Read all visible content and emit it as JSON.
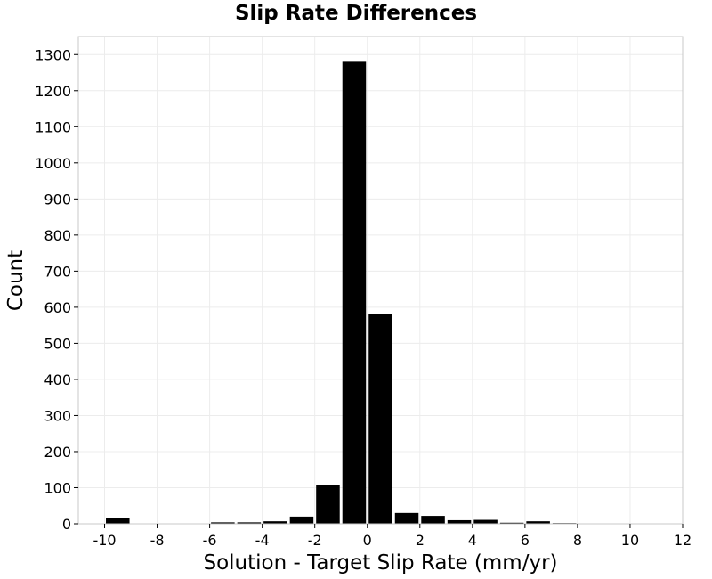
{
  "chart_data": {
    "type": "bar",
    "title": "Slip Rate Differences",
    "xlabel": "Solution - Target Slip Rate (mm/yr)",
    "ylabel": "Count",
    "xlim": [
      -11,
      12
    ],
    "ylim": [
      0,
      1350
    ],
    "x_ticks": [
      -10,
      -8,
      -6,
      -4,
      -2,
      0,
      2,
      4,
      6,
      8,
      10,
      12
    ],
    "y_ticks": [
      0,
      100,
      200,
      300,
      400,
      500,
      600,
      700,
      800,
      900,
      1000,
      1100,
      1200,
      1300
    ],
    "bin_width": 1,
    "x": [
      -9.5,
      -8.5,
      -7.5,
      -6.5,
      -5.5,
      -4.5,
      -3.5,
      -2.5,
      -1.5,
      -0.5,
      0.5,
      1.5,
      2.5,
      3.5,
      4.5,
      5.5,
      6.5,
      7.5,
      8.5,
      9.5,
      10.5
    ],
    "values": [
      15,
      0,
      0,
      0,
      4,
      4,
      7,
      20,
      107,
      1280,
      582,
      30,
      22,
      10,
      11,
      3,
      7,
      2,
      0,
      0,
      0
    ],
    "bar_color": "#000000",
    "grid": true,
    "grid_color": "#ececec",
    "frame_color": "#c8c8c8"
  }
}
